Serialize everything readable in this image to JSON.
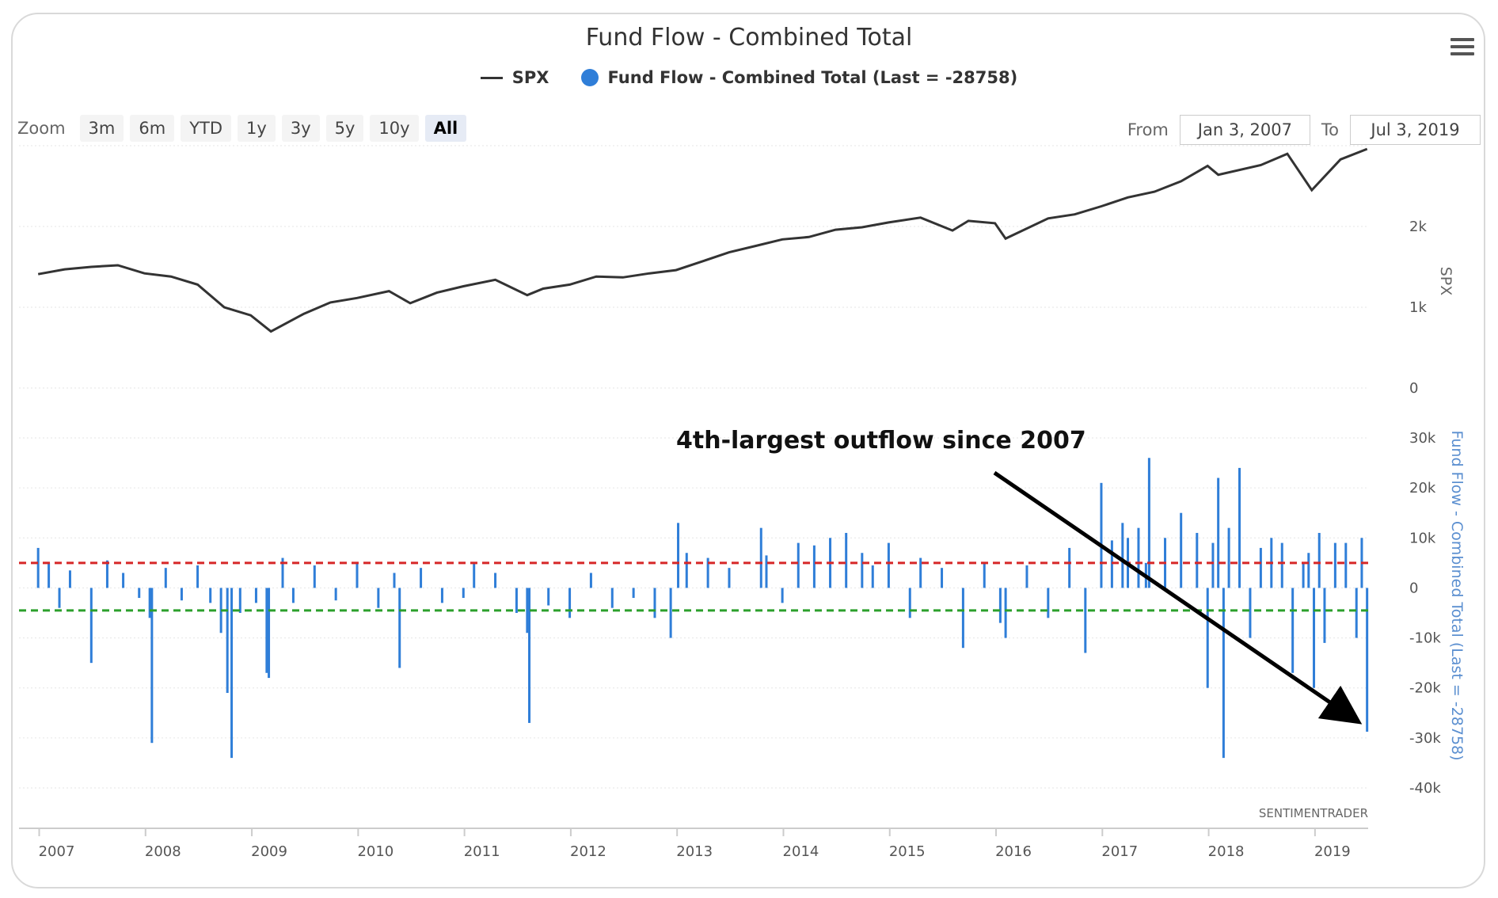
{
  "title": "Fund Flow - Combined Total",
  "legend": {
    "spx": "SPX",
    "fund_flow": "Fund Flow - Combined Total (Last = -28758)"
  },
  "zoom": {
    "label": "Zoom",
    "buttons": [
      "3m",
      "6m",
      "YTD",
      "1y",
      "3y",
      "5y",
      "10y",
      "All"
    ],
    "active": "All"
  },
  "range": {
    "from_label": "From",
    "from_value": "Jan 3, 2007",
    "to_label": "To",
    "to_value": "Jul 3, 2019"
  },
  "credit": "SENTIMENTRADER",
  "colors": {
    "spx": "#333333",
    "fund_flow": "#2f7ed8",
    "upper_band": "#d62728",
    "lower_band": "#2ca02c",
    "arrow": "#000000"
  },
  "chart_data": [
    {
      "type": "line",
      "name": "SPX",
      "axis_title": "SPX",
      "ylim": [
        0,
        3000
      ],
      "yticks": [
        "0",
        "1k",
        "2k"
      ],
      "ytick_values": [
        0,
        1000,
        2000
      ],
      "x": [
        2007.0,
        2007.25,
        2007.5,
        2007.75,
        2008.0,
        2008.25,
        2008.5,
        2008.75,
        2009.0,
        2009.19,
        2009.5,
        2009.75,
        2010.0,
        2010.3,
        2010.5,
        2010.75,
        2011.0,
        2011.3,
        2011.6,
        2011.75,
        2012.0,
        2012.25,
        2012.5,
        2012.75,
        2013.0,
        2013.25,
        2013.5,
        2013.75,
        2014.0,
        2014.25,
        2014.5,
        2014.75,
        2015.0,
        2015.3,
        2015.6,
        2015.75,
        2016.0,
        2016.1,
        2016.5,
        2016.75,
        2017.0,
        2017.25,
        2017.5,
        2017.75,
        2018.0,
        2018.1,
        2018.5,
        2018.75,
        2018.98,
        2019.25,
        2019.5
      ],
      "values": [
        1410,
        1470,
        1500,
        1520,
        1420,
        1380,
        1280,
        1000,
        900,
        700,
        920,
        1060,
        1115,
        1200,
        1050,
        1180,
        1260,
        1340,
        1150,
        1230,
        1280,
        1380,
        1370,
        1420,
        1460,
        1570,
        1680,
        1760,
        1840,
        1870,
        1960,
        1990,
        2050,
        2110,
        1950,
        2070,
        2040,
        1850,
        2100,
        2150,
        2250,
        2360,
        2430,
        2560,
        2750,
        2640,
        2760,
        2900,
        2450,
        2830,
        2960
      ]
    },
    {
      "type": "bar",
      "name": "Fund Flow - Combined Total (Last = -28758)",
      "axis_title": "Fund Flow - Combined Total (Last = -28758)",
      "ylim": [
        -40000,
        30000
      ],
      "yticks": [
        "-40k",
        "-30k",
        "-20k",
        "-10k",
        "0",
        "10k",
        "20k",
        "30k"
      ],
      "ytick_values": [
        -40000,
        -30000,
        -20000,
        -10000,
        0,
        10000,
        20000,
        30000
      ],
      "upper_band": 5000,
      "lower_band": -4500,
      "x": [
        2007.0,
        2007.1,
        2007.2,
        2007.3,
        2007.5,
        2007.65,
        2007.8,
        2007.95,
        2008.05,
        2008.07,
        2008.2,
        2008.35,
        2008.5,
        2008.62,
        2008.72,
        2008.78,
        2008.82,
        2008.9,
        2009.05,
        2009.15,
        2009.17,
        2009.3,
        2009.4,
        2009.6,
        2009.8,
        2010.0,
        2010.2,
        2010.35,
        2010.4,
        2010.6,
        2010.8,
        2011.0,
        2011.1,
        2011.3,
        2011.5,
        2011.6,
        2011.62,
        2011.8,
        2012.0,
        2012.2,
        2012.4,
        2012.6,
        2012.8,
        2012.95,
        2013.02,
        2013.1,
        2013.3,
        2013.5,
        2013.8,
        2013.85,
        2014.0,
        2014.15,
        2014.3,
        2014.45,
        2014.6,
        2014.75,
        2014.85,
        2015.0,
        2015.2,
        2015.3,
        2015.5,
        2015.7,
        2015.9,
        2016.05,
        2016.1,
        2016.3,
        2016.5,
        2016.7,
        2016.85,
        2017.0,
        2017.1,
        2017.2,
        2017.25,
        2017.35,
        2017.42,
        2017.45,
        2017.6,
        2017.75,
        2017.9,
        2018.0,
        2018.05,
        2018.1,
        2018.15,
        2018.2,
        2018.3,
        2018.4,
        2018.5,
        2018.6,
        2018.7,
        2018.8,
        2018.9,
        2018.95,
        2019.0,
        2019.05,
        2019.1,
        2019.2,
        2019.3,
        2019.4,
        2019.45,
        2019.5
      ],
      "values": [
        8000,
        5000,
        -4000,
        3500,
        -15000,
        5500,
        3000,
        -2000,
        -6000,
        -31000,
        4000,
        -2500,
        4500,
        -3000,
        -9000,
        -21000,
        -34000,
        -5000,
        -3000,
        -17000,
        -18000,
        6000,
        -3000,
        4500,
        -2500,
        5000,
        -4000,
        3000,
        -16000,
        4000,
        -3000,
        -2000,
        5000,
        3000,
        -5000,
        -9000,
        -27000,
        -3500,
        -6000,
        3000,
        -4000,
        -2000,
        -6000,
        -10000,
        13000,
        7000,
        6000,
        4000,
        12000,
        6500,
        -3000,
        9000,
        8500,
        10000,
        11000,
        7000,
        4500,
        9000,
        -6000,
        6000,
        4000,
        -12000,
        5000,
        -7000,
        -10000,
        4500,
        -6000,
        8000,
        -13000,
        21000,
        9500,
        13000,
        10000,
        12000,
        5000,
        26000,
        10000,
        15000,
        11000,
        -20000,
        9000,
        22000,
        -34000,
        12000,
        24000,
        -10000,
        8000,
        10000,
        9000,
        -17000,
        5000,
        7000,
        -20000,
        11000,
        -11000,
        9000,
        9000,
        -10000,
        10000,
        -28758
      ]
    }
  ],
  "annotation": {
    "text": "4th-largest outflow since 2007"
  },
  "x_axis": {
    "min": 2006.82,
    "max": 2019.51,
    "ticks": [
      "2007",
      "2008",
      "2009",
      "2010",
      "2011",
      "2012",
      "2013",
      "2014",
      "2015",
      "2016",
      "2017",
      "2018",
      "2019"
    ]
  }
}
